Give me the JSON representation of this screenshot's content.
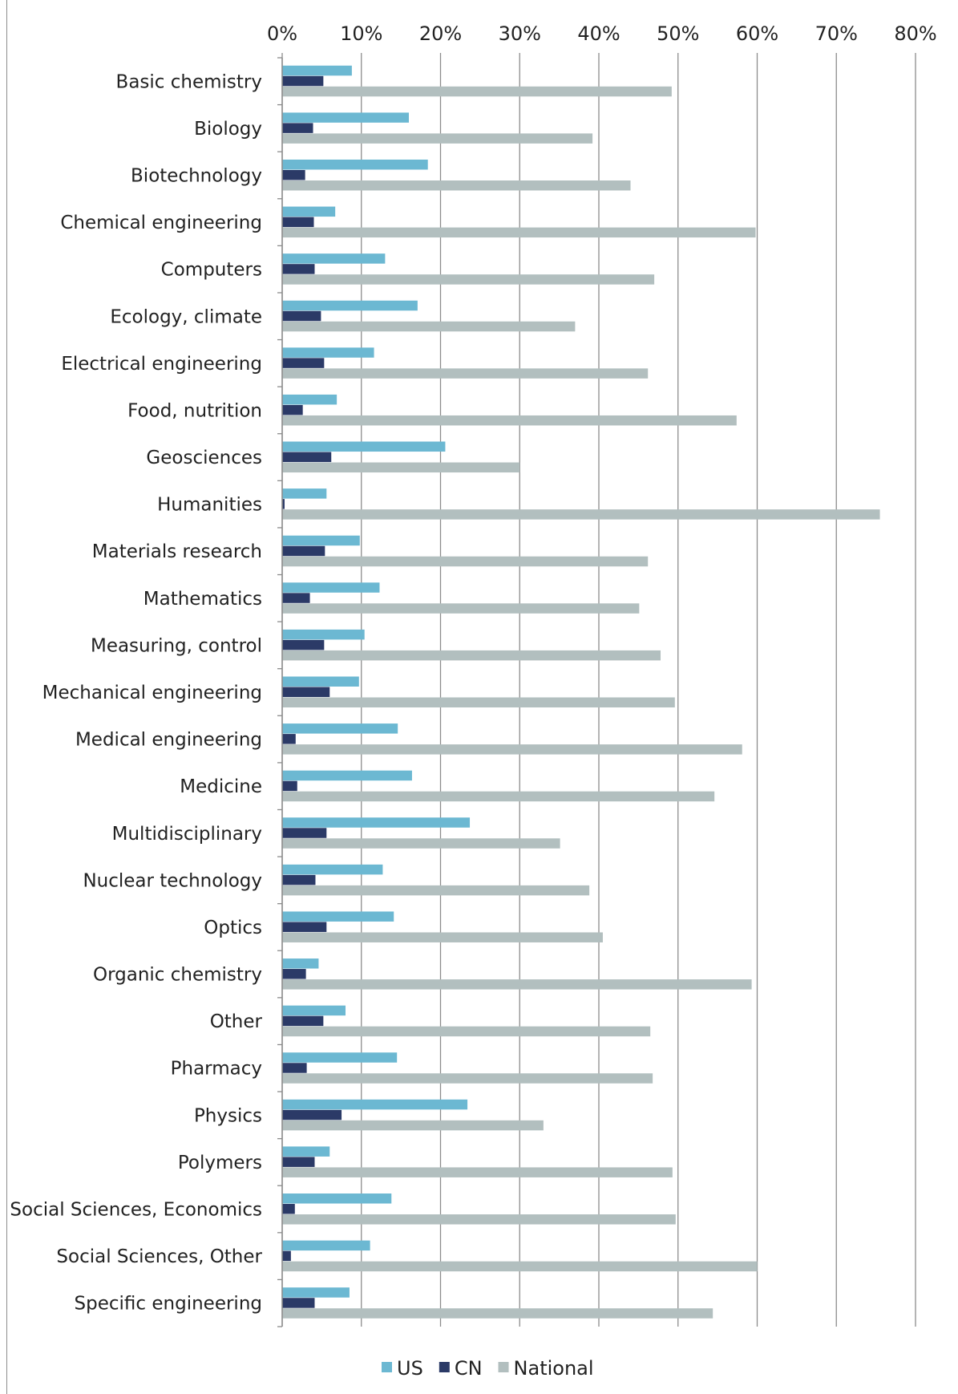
{
  "chart_data": {
    "type": "bar",
    "orientation": "horizontal",
    "categories": [
      "Basic chemistry",
      "Biology",
      "Biotechnology",
      "Chemical engineering",
      "Computers",
      "Ecology, climate",
      "Electrical engineering",
      "Food, nutrition",
      "Geosciences",
      "Humanities",
      "Materials research",
      "Mathematics",
      "Measuring, control",
      "Mechanical engineering",
      "Medical engineering",
      "Medicine",
      "Multidisciplinary",
      "Nuclear technology",
      "Optics",
      "Organic chemistry",
      "Other",
      "Pharmacy",
      "Physics",
      "Polymers",
      "Social Sciences, Economics",
      "Social Sciences, Other",
      "Specific engineering"
    ],
    "series": [
      {
        "name": "US",
        "color": "#6cb8d2",
        "values": [
          8.8,
          16.0,
          18.4,
          6.7,
          13.0,
          17.1,
          11.6,
          6.9,
          20.6,
          5.6,
          9.8,
          12.3,
          10.4,
          9.7,
          14.6,
          16.4,
          23.7,
          12.7,
          14.1,
          4.6,
          8.0,
          14.5,
          23.4,
          6.0,
          13.8,
          11.1,
          8.5
        ]
      },
      {
        "name": "CN",
        "color": "#2b3a67",
        "values": [
          5.2,
          3.9,
          2.9,
          4.0,
          4.1,
          4.9,
          5.3,
          2.6,
          6.2,
          0.3,
          5.4,
          3.5,
          5.3,
          6.0,
          1.7,
          1.9,
          5.6,
          4.2,
          5.6,
          3.0,
          5.2,
          3.1,
          7.5,
          4.1,
          1.6,
          1.1,
          4.1
        ]
      },
      {
        "name": "National",
        "color": "#b2bfbf",
        "values": [
          49.2,
          39.2,
          44.0,
          59.8,
          47.0,
          37.0,
          46.2,
          57.4,
          30.0,
          75.5,
          46.2,
          45.1,
          47.8,
          49.6,
          58.1,
          54.6,
          35.1,
          38.8,
          40.5,
          59.3,
          46.5,
          46.8,
          33.0,
          49.3,
          49.7,
          60.0,
          54.4
        ]
      }
    ],
    "xlim": [
      0,
      80
    ],
    "ticks": [
      "0%",
      "10%",
      "20%",
      "30%",
      "40%",
      "50%",
      "60%",
      "70%",
      "80%"
    ],
    "tick_values": [
      0,
      10,
      20,
      30,
      40,
      50,
      60,
      70,
      80
    ],
    "grid": true,
    "legend_position": "bottom",
    "title": "",
    "xlabel": "",
    "ylabel": ""
  }
}
